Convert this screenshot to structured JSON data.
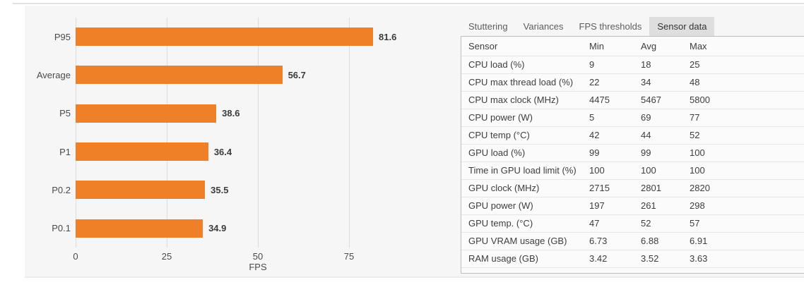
{
  "colors": {
    "bar_orange": "#F08028",
    "panel_bg": "#f6f6f6",
    "active_tab_bg": "#dedede",
    "table_bg": "#fbfbfb"
  },
  "chart_data": {
    "type": "bar",
    "orientation": "horizontal",
    "title": "",
    "xlabel": "FPS",
    "ylabel": "",
    "categories": [
      "P95",
      "Average",
      "P5",
      "P1",
      "P0.2",
      "P0.1"
    ],
    "values": [
      81.6,
      56.7,
      38.6,
      36.4,
      35.5,
      34.9
    ],
    "value_labels": [
      "81.6",
      "56.7",
      "38.6",
      "36.4",
      "35.5",
      "34.9"
    ],
    "xticks": [
      0,
      25,
      50,
      75
    ],
    "xlim": [
      0,
      95
    ],
    "grid": true,
    "legend": "none"
  },
  "tabs": [
    {
      "label": "Stuttering",
      "active": false
    },
    {
      "label": "Variances",
      "active": false
    },
    {
      "label": "FPS thresholds",
      "active": false
    },
    {
      "label": "Sensor data",
      "active": true
    }
  ],
  "sensor_table": {
    "headers": [
      "Sensor",
      "Min",
      "Avg",
      "Max"
    ],
    "rows": [
      {
        "sensor": "CPU load (%)",
        "min": "9",
        "avg": "18",
        "max": "25"
      },
      {
        "sensor": "CPU max thread load (%)",
        "min": "22",
        "avg": "34",
        "max": "48"
      },
      {
        "sensor": "CPU max clock (MHz)",
        "min": "4475",
        "avg": "5467",
        "max": "5800"
      },
      {
        "sensor": "CPU power (W)",
        "min": "5",
        "avg": "69",
        "max": "77"
      },
      {
        "sensor": "CPU temp (°C)",
        "min": "42",
        "avg": "44",
        "max": "52"
      },
      {
        "sensor": "GPU load (%)",
        "min": "99",
        "avg": "99",
        "max": "100"
      },
      {
        "sensor": "Time in GPU load limit (%)",
        "min": "100",
        "avg": "100",
        "max": "100"
      },
      {
        "sensor": "GPU clock (MHz)",
        "min": "2715",
        "avg": "2801",
        "max": "2820"
      },
      {
        "sensor": "GPU power (W)",
        "min": "197",
        "avg": "261",
        "max": "298"
      },
      {
        "sensor": "GPU temp. (°C)",
        "min": "47",
        "avg": "52",
        "max": "57"
      },
      {
        "sensor": "GPU VRAM usage (GB)",
        "min": "6.73",
        "avg": "6.88",
        "max": "6.91"
      },
      {
        "sensor": "RAM usage (GB)",
        "min": "3.42",
        "avg": "3.52",
        "max": "3.63"
      }
    ]
  }
}
